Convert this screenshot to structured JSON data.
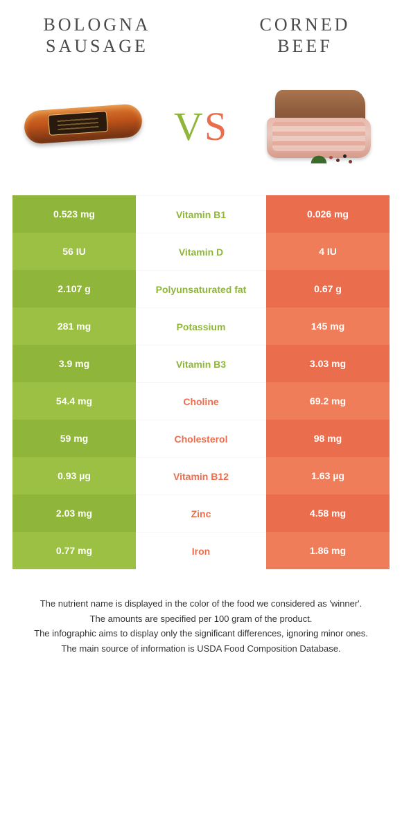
{
  "colors": {
    "left": "#8fb53b",
    "left_alt": "#9cc043",
    "right": "#ea6e4e",
    "right_alt": "#ef7d5a",
    "text_white": "#ffffff"
  },
  "header": {
    "left_title": "BOLOGNA SAUSAGE",
    "right_title": "CORNED BEEF",
    "vs": "VS"
  },
  "rows": [
    {
      "left": "0.523 mg",
      "label": "Vitamin B1",
      "right": "0.026 mg",
      "winner": "left"
    },
    {
      "left": "56 IU",
      "label": "Vitamin D",
      "right": "4 IU",
      "winner": "left"
    },
    {
      "left": "2.107 g",
      "label": "Polyunsaturated fat",
      "right": "0.67 g",
      "winner": "left"
    },
    {
      "left": "281 mg",
      "label": "Potassium",
      "right": "145 mg",
      "winner": "left"
    },
    {
      "left": "3.9 mg",
      "label": "Vitamin B3",
      "right": "3.03 mg",
      "winner": "left"
    },
    {
      "left": "54.4 mg",
      "label": "Choline",
      "right": "69.2 mg",
      "winner": "right"
    },
    {
      "left": "59 mg",
      "label": "Cholesterol",
      "right": "98 mg",
      "winner": "right"
    },
    {
      "left": "0.93 µg",
      "label": "Vitamin B12",
      "right": "1.63 µg",
      "winner": "right"
    },
    {
      "left": "2.03 mg",
      "label": "Zinc",
      "right": "4.58 mg",
      "winner": "right"
    },
    {
      "left": "0.77 mg",
      "label": "Iron",
      "right": "1.86 mg",
      "winner": "right"
    }
  ],
  "footer": {
    "l1": "The nutrient name is displayed in the color of the food we considered as 'winner'.",
    "l2": "The amounts are specified per 100 gram of the product.",
    "l3": "The infographic aims to display only the significant differences, ignoring minor ones.",
    "l4": "The main source of information is USDA Food Composition Database."
  }
}
